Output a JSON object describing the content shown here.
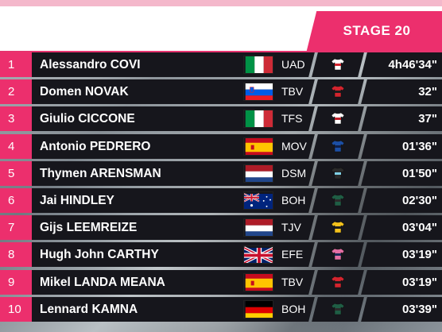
{
  "header": {
    "stage_label": "STAGE 20"
  },
  "colors": {
    "accent": "#ec2f6d",
    "row_bg": "#16161c"
  },
  "riders": [
    {
      "rank": "1",
      "name": "Alessandro COVI",
      "flag": "italy-flag",
      "team": "UAD",
      "jersey": [
        "#ffffff",
        "#d4242e"
      ],
      "time": "4h46'34\""
    },
    {
      "rank": "2",
      "name": "Domen NOVAK",
      "flag": "slovenia-flag",
      "team": "TBV",
      "jersey": [
        "#d4242e",
        "#1d1d1d"
      ],
      "time": "32\""
    },
    {
      "rank": "3",
      "name": "Giulio CICCONE",
      "flag": "italy-flag",
      "team": "TFS",
      "jersey": [
        "#ffffff",
        "#c0202a"
      ],
      "time": "37\""
    },
    {
      "rank": "4",
      "name": "Antonio PEDRERO",
      "flag": "spain-flag",
      "team": "MOV",
      "jersey": [
        "#1c4fa5",
        "#0f1f48"
      ],
      "time": "01'36\""
    },
    {
      "rank": "5",
      "name": "Thymen ARENSMAN",
      "flag": "netherlands-flag",
      "team": "DSM",
      "jersey": [
        "#2b2b2b",
        "#7fd0e6"
      ],
      "time": "01'50\""
    },
    {
      "rank": "6",
      "name": "Jai HINDLEY",
      "flag": "australia-flag",
      "team": "BOH",
      "jersey": [
        "#1f5e45",
        "#2b2b2b"
      ],
      "time": "02'30\""
    },
    {
      "rank": "7",
      "name": "Gijs LEEMREIZE",
      "flag": "netherlands-flag",
      "team": "TJV",
      "jersey": [
        "#f4c21c",
        "#1d1d1d"
      ],
      "time": "03'04\""
    },
    {
      "rank": "8",
      "name": "Hugh John CARTHY",
      "flag": "uk-flag",
      "team": "EFE",
      "jersey": [
        "#e46fa4",
        "#1e2a5a"
      ],
      "time": "03'19\""
    },
    {
      "rank": "9",
      "name": "Mikel LANDA MEANA",
      "flag": "spain-flag",
      "team": "TBV",
      "jersey": [
        "#d4242e",
        "#1d1d1d"
      ],
      "time": "03'19\""
    },
    {
      "rank": "10",
      "name": "Lennard KAMNA",
      "flag": "germany-flag",
      "team": "BOH",
      "jersey": [
        "#1f5e45",
        "#2b2b2b"
      ],
      "time": "03'39\""
    }
  ]
}
